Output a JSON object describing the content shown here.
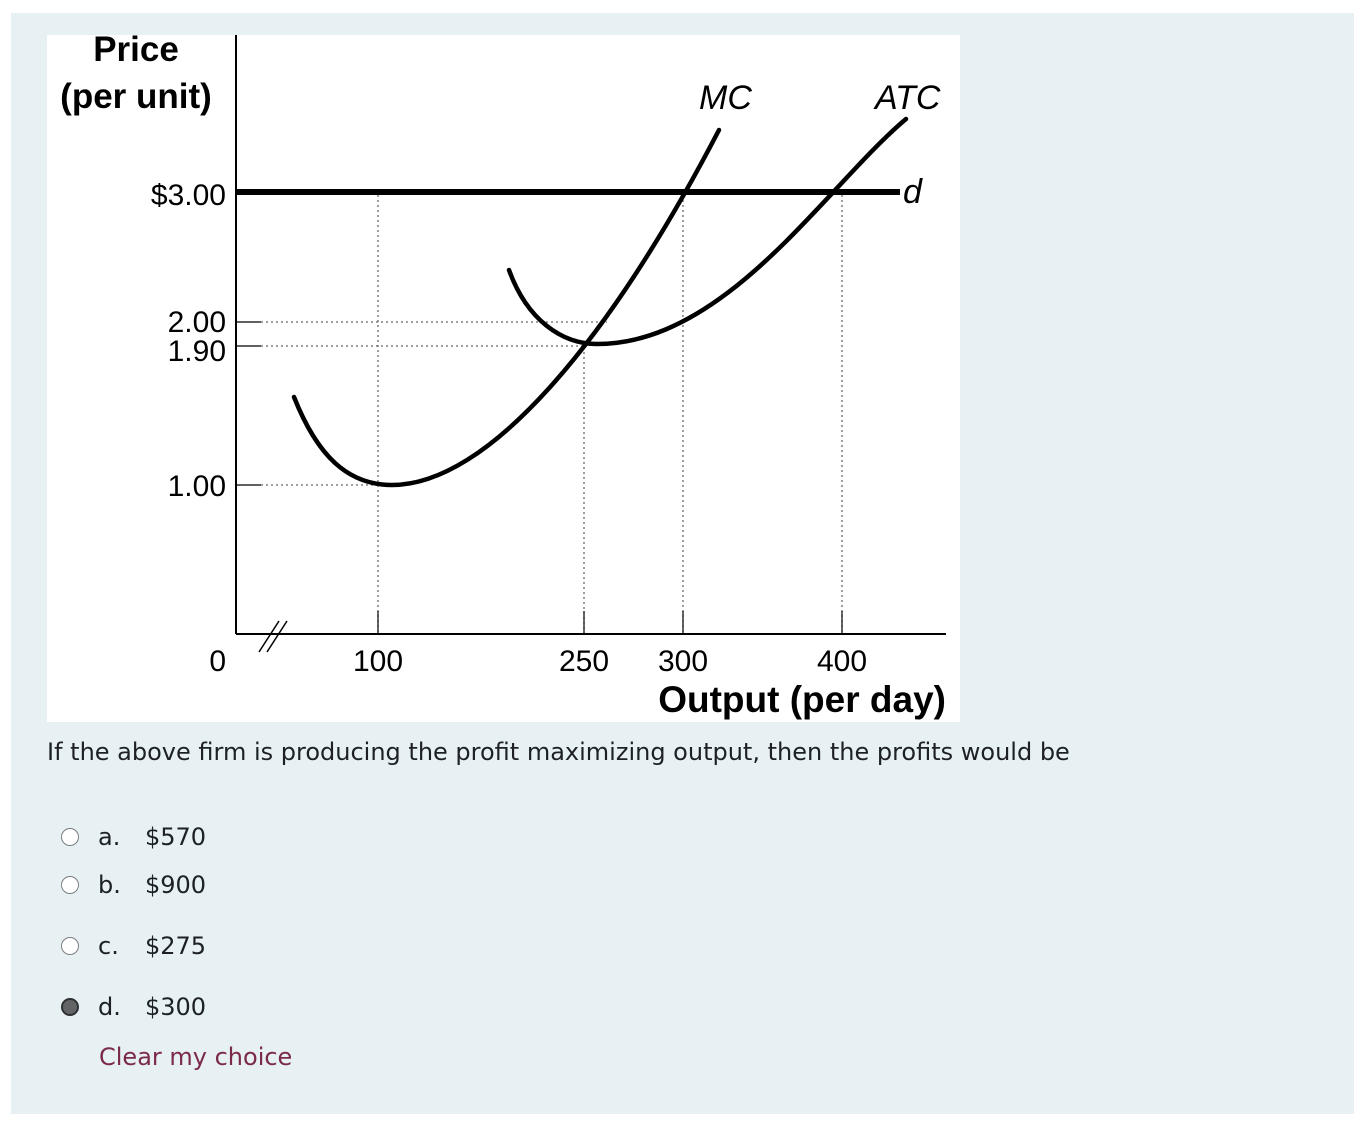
{
  "figure": {
    "y_title_line1": "Price",
    "y_title_line2": "(per unit)",
    "x_title": "Output (per day)",
    "y_ticks": [
      "$3.00",
      "2.00",
      "1.90",
      "1.00",
      "0"
    ],
    "x_ticks": [
      "100",
      "250",
      "300",
      "400"
    ],
    "labels": {
      "mc": "MC",
      "atc": "ATC",
      "d": "d"
    }
  },
  "chart_data": {
    "type": "line",
    "title": "",
    "xlabel": "Output (per day)",
    "ylabel": "Price (per unit)",
    "series": [
      {
        "name": "d",
        "x": [
          0,
          430
        ],
        "y": [
          3.0,
          3.0
        ]
      },
      {
        "name": "MC",
        "x": [
          50,
          100,
          150,
          200,
          250,
          300,
          320
        ],
        "y": [
          1.7,
          1.0,
          1.1,
          1.45,
          1.9,
          3.0,
          3.6
        ]
      },
      {
        "name": "ATC",
        "x": [
          200,
          230,
          250,
          300,
          350,
          400,
          420
        ],
        "y": [
          2.65,
          2.05,
          1.9,
          2.0,
          2.4,
          3.0,
          3.6
        ]
      }
    ],
    "x_ticks": [
      100,
      250,
      300,
      400
    ],
    "y_ticks": [
      1.0,
      1.9,
      2.0,
      3.0
    ]
  },
  "question": {
    "text": "If the above firm is producing the profit maximizing output, then the profits would be"
  },
  "options": [
    {
      "letter": "a.",
      "value": "$570",
      "checked": false
    },
    {
      "letter": "b.",
      "value": "$900",
      "checked": false
    },
    {
      "letter": "c.",
      "value": "$275",
      "checked": false
    },
    {
      "letter": "d.",
      "value": "$300",
      "checked": true
    }
  ],
  "clear_label": "Clear my choice"
}
